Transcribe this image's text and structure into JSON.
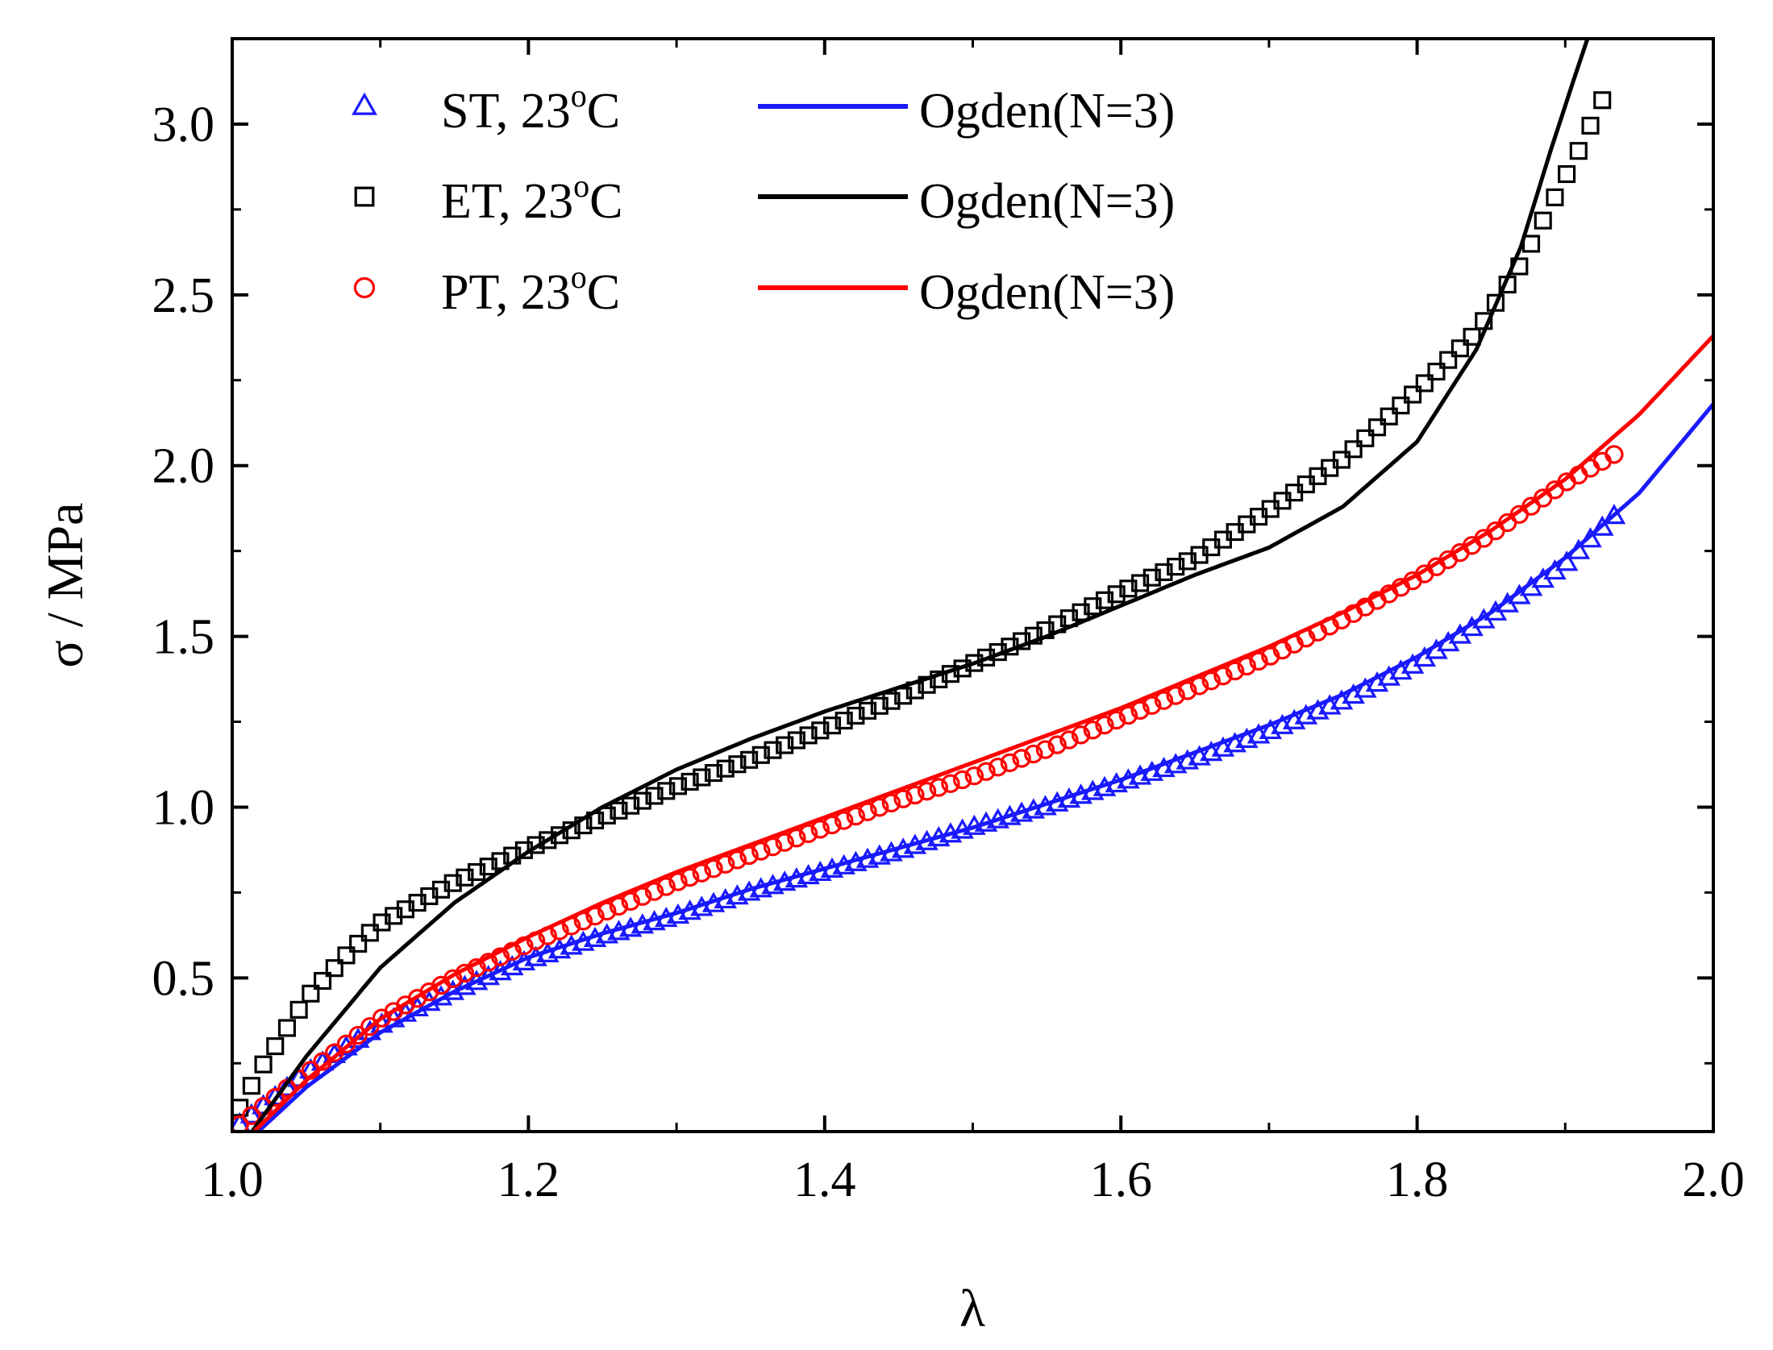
{
  "chart_data": {
    "type": "scatter",
    "xlabel": "λ",
    "ylabel": "σ / MPa",
    "xlim": [
      1.0,
      2.0
    ],
    "ylim": [
      0.05,
      3.25
    ],
    "x_ticks": [
      {
        "value": 1.0,
        "label": "1.0"
      },
      {
        "value": 1.2,
        "label": "1.2"
      },
      {
        "value": 1.4,
        "label": "1.4"
      },
      {
        "value": 1.6,
        "label": "1.6"
      },
      {
        "value": 1.8,
        "label": "1.8"
      },
      {
        "value": 2.0,
        "label": "2.0"
      }
    ],
    "y_ticks": [
      {
        "value": 0.5,
        "label": "0.5"
      },
      {
        "value": 1.0,
        "label": "1.0"
      },
      {
        "value": 1.5,
        "label": "1.5"
      },
      {
        "value": 2.0,
        "label": "2.0"
      },
      {
        "value": 2.5,
        "label": "2.5"
      },
      {
        "value": 3.0,
        "label": "3.0"
      }
    ],
    "legend_position": "top-left",
    "series": [
      {
        "name": "ST, 23°C",
        "label_main": "ST, 23",
        "label_sup": "o",
        "label_tail": "C",
        "kind": "markers",
        "marker": "triangle",
        "color": "#1a1aff",
        "x_start": 1.005,
        "x_end": 1.935,
        "x_step": 0.008,
        "anchors": [
          [
            1.005,
            0.07
          ],
          [
            1.05,
            0.22
          ],
          [
            1.1,
            0.36
          ],
          [
            1.15,
            0.46
          ],
          [
            1.2,
            0.55
          ],
          [
            1.25,
            0.62
          ],
          [
            1.3,
            0.68
          ],
          [
            1.35,
            0.75
          ],
          [
            1.4,
            0.81
          ],
          [
            1.45,
            0.87
          ],
          [
            1.5,
            0.94
          ],
          [
            1.55,
            1.0
          ],
          [
            1.6,
            1.07
          ],
          [
            1.65,
            1.14
          ],
          [
            1.7,
            1.22
          ],
          [
            1.75,
            1.31
          ],
          [
            1.8,
            1.42
          ],
          [
            1.85,
            1.56
          ],
          [
            1.9,
            1.71
          ],
          [
            1.935,
            1.86
          ]
        ]
      },
      {
        "name": "ET, 23°C",
        "label_main": "ET, 23",
        "label_sup": "o",
        "label_tail": "C",
        "kind": "markers",
        "marker": "square",
        "color": "#000000",
        "x_start": 1.005,
        "x_end": 1.925,
        "x_step": 0.008,
        "anchors": [
          [
            1.005,
            0.12
          ],
          [
            1.02,
            0.24
          ],
          [
            1.05,
            0.44
          ],
          [
            1.08,
            0.58
          ],
          [
            1.1,
            0.66
          ],
          [
            1.15,
            0.78
          ],
          [
            1.2,
            0.88
          ],
          [
            1.25,
            0.97
          ],
          [
            1.3,
            1.06
          ],
          [
            1.35,
            1.14
          ],
          [
            1.4,
            1.23
          ],
          [
            1.45,
            1.32
          ],
          [
            1.5,
            1.42
          ],
          [
            1.55,
            1.52
          ],
          [
            1.6,
            1.63
          ],
          [
            1.65,
            1.73
          ],
          [
            1.7,
            1.87
          ],
          [
            1.75,
            2.02
          ],
          [
            1.8,
            2.22
          ],
          [
            1.84,
            2.39
          ],
          [
            1.87,
            2.59
          ],
          [
            1.89,
            2.76
          ],
          [
            1.91,
            2.93
          ],
          [
            1.925,
            3.07
          ]
        ]
      },
      {
        "name": "PT, 23°C",
        "label_main": "PT, 23",
        "label_sup": "o",
        "label_tail": "C",
        "kind": "markers",
        "marker": "circle",
        "color": "#ff0000",
        "x_start": 1.005,
        "x_end": 1.94,
        "x_step": 0.008,
        "anchors": [
          [
            1.005,
            0.07
          ],
          [
            1.05,
            0.22
          ],
          [
            1.1,
            0.38
          ],
          [
            1.15,
            0.5
          ],
          [
            1.2,
            0.6
          ],
          [
            1.25,
            0.69
          ],
          [
            1.3,
            0.78
          ],
          [
            1.35,
            0.86
          ],
          [
            1.4,
            0.94
          ],
          [
            1.45,
            1.02
          ],
          [
            1.5,
            1.09
          ],
          [
            1.55,
            1.17
          ],
          [
            1.6,
            1.26
          ],
          [
            1.65,
            1.35
          ],
          [
            1.7,
            1.44
          ],
          [
            1.75,
            1.55
          ],
          [
            1.8,
            1.67
          ],
          [
            1.85,
            1.8
          ],
          [
            1.9,
            1.95
          ],
          [
            1.94,
            2.05
          ]
        ]
      },
      {
        "name": "Ogden(N=3)",
        "label_main": "Ogden(N=3)",
        "kind": "line",
        "color": "#1a1aff",
        "stroke_width": 5,
        "anchors": [
          [
            1.01,
            0.02
          ],
          [
            1.05,
            0.18
          ],
          [
            1.1,
            0.34
          ],
          [
            1.15,
            0.46
          ],
          [
            1.2,
            0.56
          ],
          [
            1.25,
            0.63
          ],
          [
            1.3,
            0.69
          ],
          [
            1.35,
            0.76
          ],
          [
            1.4,
            0.82
          ],
          [
            1.45,
            0.88
          ],
          [
            1.5,
            0.94
          ],
          [
            1.55,
            1.01
          ],
          [
            1.6,
            1.08
          ],
          [
            1.65,
            1.16
          ],
          [
            1.7,
            1.24
          ],
          [
            1.75,
            1.33
          ],
          [
            1.8,
            1.44
          ],
          [
            1.85,
            1.57
          ],
          [
            1.9,
            1.73
          ],
          [
            1.95,
            1.92
          ],
          [
            2.0,
            2.18
          ]
        ]
      },
      {
        "name": "Ogden(N=3)",
        "label_main": "Ogden(N=3)",
        "kind": "line",
        "color": "#000000",
        "stroke_width": 5,
        "anchors": [
          [
            1.01,
            0.03
          ],
          [
            1.05,
            0.27
          ],
          [
            1.1,
            0.53
          ],
          [
            1.15,
            0.72
          ],
          [
            1.2,
            0.87
          ],
          [
            1.25,
            1.0
          ],
          [
            1.3,
            1.11
          ],
          [
            1.35,
            1.2
          ],
          [
            1.4,
            1.28
          ],
          [
            1.45,
            1.35
          ],
          [
            1.5,
            1.42
          ],
          [
            1.55,
            1.5
          ],
          [
            1.6,
            1.59
          ],
          [
            1.65,
            1.68
          ],
          [
            1.7,
            1.76
          ],
          [
            1.75,
            1.88
          ],
          [
            1.8,
            2.07
          ],
          [
            1.84,
            2.34
          ],
          [
            1.87,
            2.64
          ],
          [
            1.89,
            2.92
          ],
          [
            1.905,
            3.12
          ],
          [
            1.915,
            3.25
          ]
        ]
      },
      {
        "name": "Ogden(N=3)",
        "label_main": "Ogden(N=3)",
        "kind": "line",
        "color": "#ff0000",
        "stroke_width": 5,
        "anchors": [
          [
            1.01,
            0.03
          ],
          [
            1.05,
            0.2
          ],
          [
            1.1,
            0.38
          ],
          [
            1.15,
            0.51
          ],
          [
            1.2,
            0.62
          ],
          [
            1.25,
            0.72
          ],
          [
            1.3,
            0.81
          ],
          [
            1.35,
            0.89
          ],
          [
            1.4,
            0.97
          ],
          [
            1.45,
            1.05
          ],
          [
            1.5,
            1.13
          ],
          [
            1.55,
            1.21
          ],
          [
            1.6,
            1.29
          ],
          [
            1.65,
            1.38
          ],
          [
            1.7,
            1.47
          ],
          [
            1.75,
            1.57
          ],
          [
            1.8,
            1.68
          ],
          [
            1.85,
            1.81
          ],
          [
            1.9,
            1.96
          ],
          [
            1.95,
            2.15
          ],
          [
            2.0,
            2.38
          ]
        ]
      }
    ],
    "legend_rows": [
      {
        "marker_series": 0,
        "line_series": 3
      },
      {
        "marker_series": 1,
        "line_series": 4
      },
      {
        "marker_series": 2,
        "line_series": 5
      }
    ]
  }
}
